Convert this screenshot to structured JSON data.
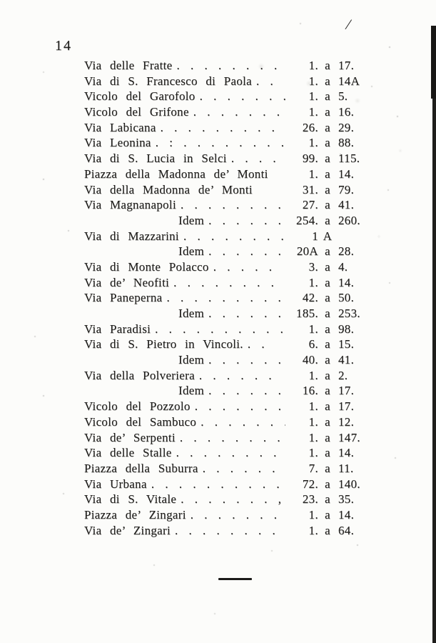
{
  "page": {
    "number": "14",
    "corner_mark": "/"
  },
  "rows": [
    {
      "name": "Via delle Fratte",
      "leader": " . . . . . . . .",
      "from": "1.",
      "sep": "a",
      "to": "17.",
      "indent": false
    },
    {
      "name": "Via di S. Francesco di Paola",
      "leader": " . .",
      "from": "1.",
      "sep": "a",
      "to": "14A",
      "indent": false
    },
    {
      "name": "Vicolo del Garofolo",
      "leader": " . . . . . . . .",
      "from": "1.",
      "sep": "a",
      "to": "5.",
      "indent": false
    },
    {
      "name": "Vicolo del Grifone",
      "leader": " . . . . . . . .",
      "from": "1.",
      "sep": "a",
      "to": "16.",
      "indent": false
    },
    {
      "name": "Via Labicana",
      "leader": " . . . . . . . . . .",
      "from": "26.",
      "sep": "a",
      "to": "29.",
      "indent": false
    },
    {
      "name": "Via Leonina",
      "leader": " . : . . . . . . . .",
      "from": "1.",
      "sep": "a",
      "to": "88.",
      "indent": false
    },
    {
      "name": "Via di S. Lucia in Selci",
      "leader": " . . . .",
      "from": "99.",
      "sep": "a",
      "to": "115.",
      "indent": false
    },
    {
      "name": "Piazza della Madonna de’ Monti",
      "leader": "",
      "from": "1.",
      "sep": "a",
      "to": "14.",
      "indent": false
    },
    {
      "name": "Via della Madonna de’ Monti",
      "leader": "",
      "from": "31.",
      "sep": "a",
      "to": "79.",
      "indent": false
    },
    {
      "name": "Via Magnanapoli",
      "leader": " . . . . . . . .",
      "from": "27.",
      "sep": "a",
      "to": "41.",
      "indent": false
    },
    {
      "name": "Idem",
      "leader": " . . . . . .",
      "from": "254.",
      "sep": "a",
      "to": "260.",
      "indent": true
    },
    {
      "name": "Via di Mazzarini",
      "leader": " . . . . . . . .",
      "from": "1",
      "sep": "A",
      "to": "",
      "indent": false
    },
    {
      "name": "Idem",
      "leader": " . . . . . .",
      "from": "20A",
      "sep": "a",
      "to": "28.",
      "indent": true
    },
    {
      "name": "Via di Monte Polacco",
      "leader": " . . . . .",
      "from": "3.",
      "sep": "a",
      "to": "4.",
      "indent": false
    },
    {
      "name": "Via de’ Neofiti",
      "leader": " . . . . . . . . .",
      "from": "1.",
      "sep": "a",
      "to": "14.",
      "indent": false
    },
    {
      "name": "Via Paneperna",
      "leader": " . . . . . . . . .",
      "from": "42.",
      "sep": "a",
      "to": "50.",
      "indent": false
    },
    {
      "name": "Idem",
      "leader": " . . . . . .",
      "from": "185.",
      "sep": "a",
      "to": "253.",
      "indent": true
    },
    {
      "name": "Via Paradisi",
      "leader": " . . . . . . . . . .",
      "from": "1.",
      "sep": "a",
      "to": "98.",
      "indent": false
    },
    {
      "name": "Via di S. Pietro in Vincoli.",
      "leader": " . .",
      "from": "6.",
      "sep": "a",
      "to": "15.",
      "indent": false
    },
    {
      "name": "Idem",
      "leader": " . . . . . .",
      "from": "40.",
      "sep": "a",
      "to": "41.",
      "indent": true
    },
    {
      "name": "Via della Polveriera",
      "leader": " . . . . . .",
      "from": "1.",
      "sep": "a",
      "to": "2.",
      "indent": false
    },
    {
      "name": "Idem",
      "leader": " . . . . . .",
      "from": "16.",
      "sep": "a",
      "to": "17.",
      "indent": true
    },
    {
      "name": "Vicolo del Pozzolo",
      "leader": " . . . . . . .",
      "from": "1.",
      "sep": "a",
      "to": "17.",
      "indent": false
    },
    {
      "name": "Vicolo del Sambuco",
      "leader": " . . . . . . .",
      "from": "1.",
      "sep": "a",
      "to": "12.",
      "indent": false
    },
    {
      "name": "Via de’ Serpenti",
      "leader": " . . . . . . . .",
      "from": "1.",
      "sep": "a",
      "to": "147.",
      "indent": false
    },
    {
      "name": "Via delle Stalle",
      "leader": " . . . . . . . . . .",
      "from": "1.",
      "sep": "a",
      "to": "14.",
      "indent": false
    },
    {
      "name": "Piazza della Suburra",
      "leader": " . . . . . . .",
      "from": "7.",
      "sep": "a",
      "to": "11.",
      "indent": false
    },
    {
      "name": "Via Urbana",
      "leader": " . . . . . . . . . .",
      "from": "72.",
      "sep": "a",
      "to": "140.",
      "indent": false
    },
    {
      "name": "Via di S. Vitale",
      "leader": " . . . . . . . ,",
      "from": "23.",
      "sep": "a",
      "to": "35.",
      "indent": false
    },
    {
      "name": "Piazza de’ Zingari",
      "leader": " . . . . . . . .",
      "from": "1.",
      "sep": "a",
      "to": "14.",
      "indent": false
    },
    {
      "name": "Via de’ Zingari",
      "leader": " . . . . . . . . .",
      "from": "1.",
      "sep": "a",
      "to": "64.",
      "indent": false
    }
  ]
}
